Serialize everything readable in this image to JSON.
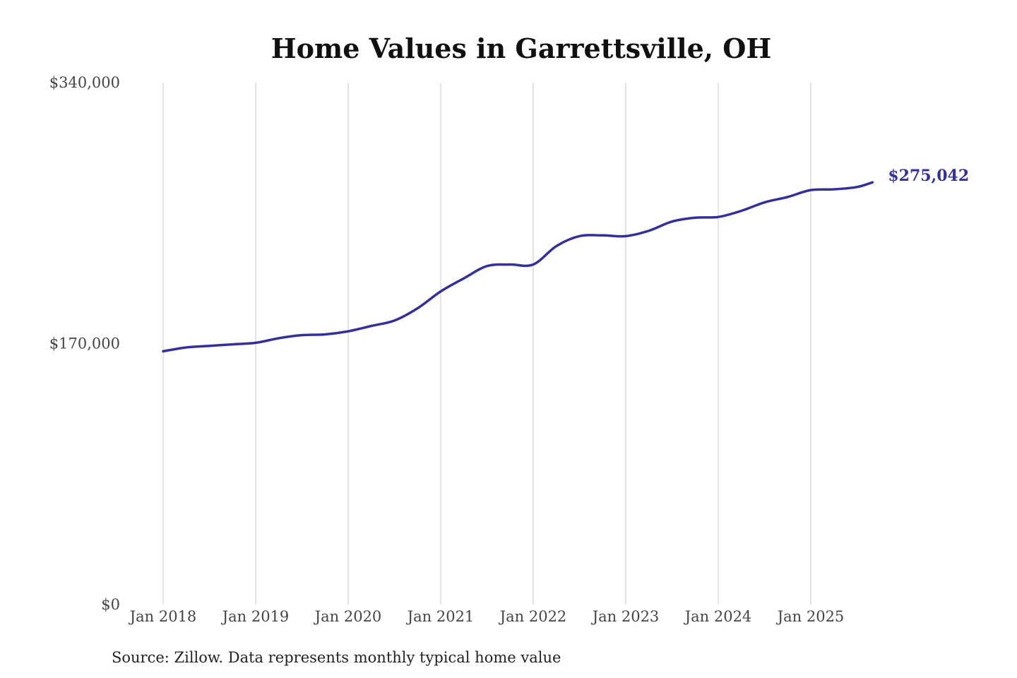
{
  "colors": {
    "line": "#33309a",
    "grid": "#c8c8c8",
    "text": "#444444",
    "title": "#111111"
  },
  "chart_data": {
    "type": "line",
    "title": "Home Values in Garrettsville, OH",
    "xlabel": "",
    "ylabel": "",
    "ylim": [
      0,
      340000
    ],
    "y_ticks": [
      {
        "value": 0,
        "label": "$0"
      },
      {
        "value": 170000,
        "label": "$170,000"
      },
      {
        "value": 340000,
        "label": "$340,000"
      }
    ],
    "x_ticks": [
      {
        "value": "2018-01",
        "label": "Jan 2018"
      },
      {
        "value": "2019-01",
        "label": "Jan 2019"
      },
      {
        "value": "2020-01",
        "label": "Jan 2020"
      },
      {
        "value": "2021-01",
        "label": "Jan 2021"
      },
      {
        "value": "2022-01",
        "label": "Jan 2022"
      },
      {
        "value": "2023-01",
        "label": "Jan 2023"
      },
      {
        "value": "2024-01",
        "label": "Jan 2024"
      },
      {
        "value": "2025-01",
        "label": "Jan 2025"
      }
    ],
    "grid": {
      "vertical": true,
      "horizontal": false
    },
    "end_label": "$275,042",
    "series": [
      {
        "points": [
          {
            "x": "2018-01",
            "y": 165000
          },
          {
            "x": "2018-04",
            "y": 167500
          },
          {
            "x": "2018-07",
            "y": 168500
          },
          {
            "x": "2018-10",
            "y": 169500
          },
          {
            "x": "2019-01",
            "y": 170500
          },
          {
            "x": "2019-04",
            "y": 173500
          },
          {
            "x": "2019-07",
            "y": 175500
          },
          {
            "x": "2019-10",
            "y": 176000
          },
          {
            "x": "2020-01",
            "y": 178000
          },
          {
            "x": "2020-04",
            "y": 181500
          },
          {
            "x": "2020-07",
            "y": 185000
          },
          {
            "x": "2020-10",
            "y": 193000
          },
          {
            "x": "2021-01",
            "y": 204000
          },
          {
            "x": "2021-04",
            "y": 212500
          },
          {
            "x": "2021-07",
            "y": 220500
          },
          {
            "x": "2021-10",
            "y": 221500
          },
          {
            "x": "2022-01",
            "y": 221500
          },
          {
            "x": "2022-04",
            "y": 233500
          },
          {
            "x": "2022-07",
            "y": 240000
          },
          {
            "x": "2022-10",
            "y": 240500
          },
          {
            "x": "2023-01",
            "y": 240000
          },
          {
            "x": "2023-04",
            "y": 243500
          },
          {
            "x": "2023-07",
            "y": 249500
          },
          {
            "x": "2023-10",
            "y": 252000
          },
          {
            "x": "2024-01",
            "y": 252500
          },
          {
            "x": "2024-04",
            "y": 256500
          },
          {
            "x": "2024-07",
            "y": 262000
          },
          {
            "x": "2024-10",
            "y": 265500
          },
          {
            "x": "2025-01",
            "y": 270000
          },
          {
            "x": "2025-04",
            "y": 270500
          },
          {
            "x": "2025-07",
            "y": 272000
          },
          {
            "x": "2025-09",
            "y": 275042
          }
        ]
      }
    ]
  },
  "footer": {
    "source": "Source: Zillow. Data represents monthly typical home value"
  }
}
